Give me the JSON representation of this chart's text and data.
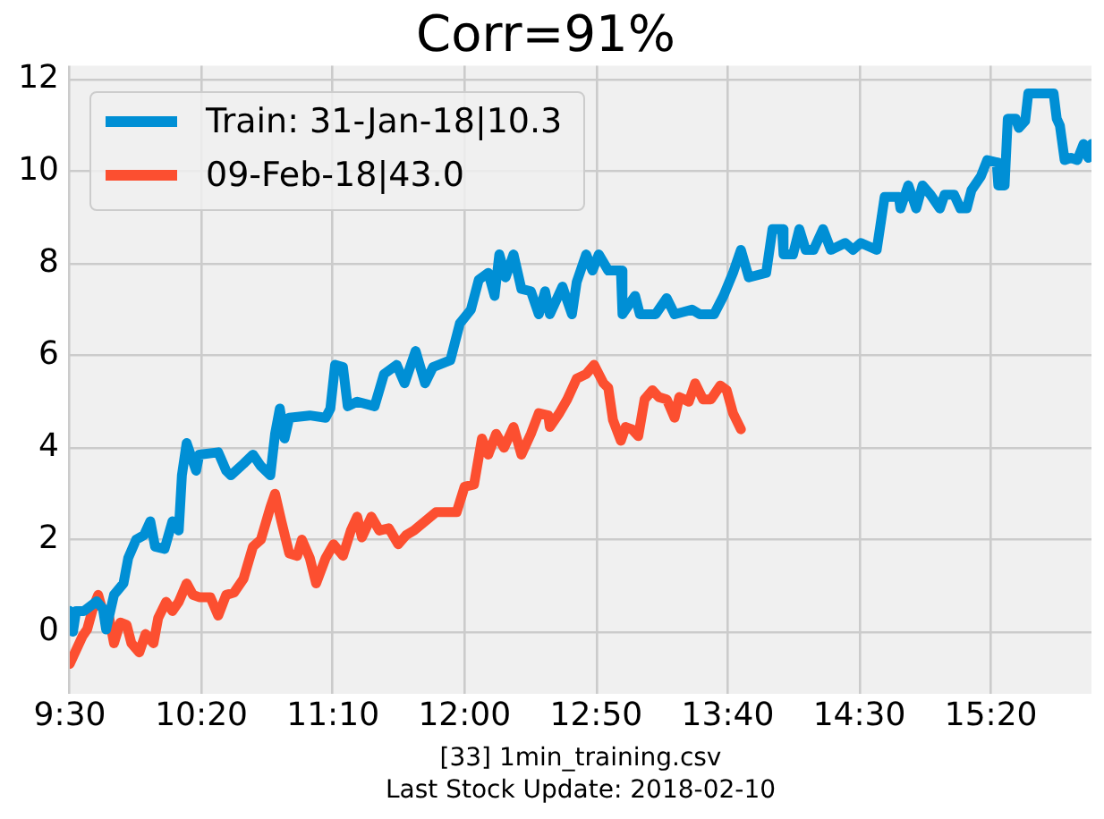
{
  "chart_data": {
    "type": "line",
    "title": "Corr=91%",
    "annotations": [
      "[33] 1min_training.csv",
      "Last Stock Update: 2018-02-10"
    ],
    "xlim": [
      9.5,
      15.97
    ],
    "xticks": [
      {
        "value": 9.5,
        "label": "9:30"
      },
      {
        "value": 10.3333,
        "label": "10:20"
      },
      {
        "value": 11.1667,
        "label": "11:10"
      },
      {
        "value": 12,
        "label": "12:00"
      },
      {
        "value": 12.8333,
        "label": "12:50"
      },
      {
        "value": 13.6667,
        "label": "13:40"
      },
      {
        "value": 14.5,
        "label": "14:30"
      },
      {
        "value": 15.3333,
        "label": "15:20"
      }
    ],
    "ylim": [
      -1.35,
      12.3
    ],
    "yticks": [
      0,
      2,
      4,
      6,
      8,
      10,
      12
    ],
    "grid": true,
    "legend": "top left",
    "series": [
      {
        "name": "Train: 31-Jan-18|10.3",
        "color": "#008fd5",
        "x": [
          9.5,
          9.52,
          9.54,
          9.59,
          9.67,
          9.71,
          9.73,
          9.78,
          9.84,
          9.87,
          9.92,
          9.97,
          10.01,
          10.04,
          10.1,
          10.15,
          10.19,
          10.21,
          10.24,
          10.3,
          10.32,
          10.44,
          10.49,
          10.52,
          10.6,
          10.66,
          10.71,
          10.77,
          10.8,
          10.83,
          10.86,
          10.89,
          11.02,
          11.12,
          11.15,
          11.18,
          11.23,
          11.26,
          11.32,
          11.43,
          11.49,
          11.57,
          11.62,
          11.69,
          11.75,
          11.8,
          11.91,
          11.97,
          12.04,
          12.09,
          12.15,
          12.19,
          12.22,
          12.26,
          12.31,
          12.36,
          12.42,
          12.47,
          12.51,
          12.54,
          12.62,
          12.68,
          12.71,
          12.77,
          12.81,
          12.85,
          12.91,
          12.99,
          13.0,
          13.08,
          13.11,
          13.21,
          13.28,
          13.33,
          13.44,
          13.49,
          13.58,
          13.64,
          13.7,
          13.75,
          13.8,
          13.91,
          13.95,
          14.01,
          14.02,
          14.08,
          14.12,
          14.16,
          14.21,
          14.27,
          14.32,
          14.41,
          14.46,
          14.51,
          14.61,
          14.66,
          14.75,
          14.76,
          14.81,
          14.86,
          14.9,
          14.95,
          15.01,
          15.04,
          15.1,
          15.14,
          15.18,
          15.21,
          15.27,
          15.31,
          15.37,
          15.38,
          15.42,
          15.44,
          15.49,
          15.51,
          15.55,
          15.57,
          15.73,
          15.75,
          15.77,
          15.8,
          15.84,
          15.88,
          15.92,
          15.95,
          15.97
        ],
        "values": [
          0.45,
          0.0,
          0.45,
          0.45,
          0.66,
          0.5,
          0.05,
          0.8,
          1.05,
          1.6,
          2.0,
          2.1,
          2.4,
          1.85,
          1.8,
          2.4,
          2.2,
          3.4,
          4.1,
          3.5,
          3.85,
          3.9,
          3.5,
          3.4,
          3.65,
          3.85,
          3.6,
          3.4,
          4.3,
          4.85,
          4.2,
          4.65,
          4.7,
          4.65,
          4.85,
          5.8,
          5.75,
          4.9,
          5.0,
          4.9,
          5.6,
          5.8,
          5.4,
          6.1,
          5.4,
          5.75,
          5.9,
          6.7,
          7.0,
          7.65,
          7.8,
          7.3,
          8.2,
          7.7,
          8.2,
          7.45,
          7.4,
          6.9,
          7.4,
          6.9,
          7.5,
          6.9,
          7.6,
          8.2,
          7.85,
          8.2,
          7.85,
          7.85,
          6.9,
          7.3,
          6.9,
          6.9,
          7.25,
          6.9,
          7.0,
          6.9,
          6.9,
          7.3,
          7.8,
          8.3,
          7.7,
          7.8,
          8.75,
          8.75,
          8.2,
          8.2,
          8.75,
          8.3,
          8.3,
          8.75,
          8.3,
          8.45,
          8.3,
          8.45,
          8.3,
          9.45,
          9.45,
          9.2,
          9.7,
          9.2,
          9.7,
          9.5,
          9.2,
          9.5,
          9.5,
          9.2,
          9.2,
          9.6,
          9.9,
          10.25,
          10.2,
          9.7,
          9.7,
          11.15,
          11.15,
          10.95,
          11.1,
          11.7,
          11.7,
          11.15,
          11.0,
          10.25,
          10.3,
          10.25,
          10.6,
          10.3,
          10.6
        ]
      },
      {
        "name": "09-Feb-18|43.0",
        "color": "#fc4f30",
        "x": [
          9.5,
          9.58,
          9.61,
          9.65,
          9.68,
          9.7,
          9.75,
          9.78,
          9.82,
          9.86,
          9.89,
          9.94,
          9.98,
          10.03,
          10.06,
          10.11,
          10.15,
          10.19,
          10.24,
          10.28,
          10.32,
          10.39,
          10.44,
          10.49,
          10.54,
          10.6,
          10.66,
          10.71,
          10.77,
          10.8,
          10.84,
          10.89,
          10.94,
          10.97,
          11.02,
          11.06,
          11.12,
          11.17,
          11.23,
          11.28,
          11.32,
          11.35,
          11.41,
          11.46,
          11.52,
          11.58,
          11.63,
          11.68,
          11.75,
          11.82,
          11.95,
          12.0,
          12.06,
          12.11,
          12.15,
          12.2,
          12.25,
          12.31,
          12.36,
          12.42,
          12.47,
          12.53,
          12.54,
          12.6,
          12.65,
          12.71,
          12.77,
          12.82,
          12.88,
          12.91,
          12.94,
          12.99,
          13.02,
          13.06,
          13.1,
          13.14,
          13.19,
          13.23,
          13.28,
          13.33,
          13.36,
          13.42,
          13.46,
          13.51,
          13.56,
          13.62,
          13.66,
          13.7,
          13.75
        ],
        "values": [
          -0.7,
          -0.1,
          0.05,
          0.55,
          0.8,
          0.55,
          0.3,
          -0.25,
          0.2,
          0.15,
          -0.25,
          -0.45,
          -0.05,
          -0.25,
          0.3,
          0.65,
          0.45,
          0.65,
          1.05,
          0.8,
          0.75,
          0.75,
          0.35,
          0.8,
          0.85,
          1.15,
          1.85,
          2.0,
          2.7,
          3.0,
          2.4,
          1.7,
          1.65,
          2.0,
          1.6,
          1.05,
          1.6,
          1.9,
          1.65,
          2.2,
          2.5,
          2.05,
          2.5,
          2.2,
          2.25,
          1.9,
          2.1,
          2.2,
          2.4,
          2.6,
          2.6,
          3.15,
          3.2,
          4.2,
          3.85,
          4.3,
          4.0,
          4.45,
          3.85,
          4.3,
          4.75,
          4.7,
          4.45,
          4.75,
          5.05,
          5.5,
          5.6,
          5.8,
          5.4,
          5.3,
          4.6,
          4.15,
          4.45,
          4.4,
          4.25,
          5.05,
          5.25,
          5.1,
          5.05,
          4.65,
          5.1,
          5.0,
          5.4,
          5.05,
          5.05,
          5.35,
          5.25,
          4.75,
          4.4
        ]
      }
    ]
  }
}
